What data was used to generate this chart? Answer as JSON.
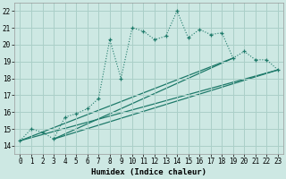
{
  "xlabel": "Humidex (Indice chaleur)",
  "bg_color": "#cde8e3",
  "grid_color": "#aacfc8",
  "line_color": "#1e7a6a",
  "xlim": [
    -0.5,
    23.5
  ],
  "ylim": [
    13.5,
    22.5
  ],
  "yticks": [
    14,
    15,
    16,
    17,
    18,
    19,
    20,
    21,
    22
  ],
  "xticks": [
    0,
    1,
    2,
    3,
    4,
    5,
    6,
    7,
    8,
    9,
    10,
    11,
    12,
    13,
    14,
    15,
    16,
    17,
    18,
    19,
    20,
    21,
    22,
    23
  ],
  "main_x": [
    0,
    1,
    2,
    3,
    4,
    5,
    6,
    7,
    8,
    9,
    10,
    11,
    12,
    13,
    14,
    15,
    16,
    17,
    18,
    19,
    20,
    21,
    22,
    23
  ],
  "main_y": [
    14.3,
    15.0,
    14.8,
    14.4,
    15.7,
    15.9,
    16.2,
    16.8,
    20.3,
    18.0,
    21.0,
    20.8,
    20.3,
    20.5,
    22.0,
    20.4,
    20.9,
    20.6,
    20.7,
    19.2,
    19.6,
    19.1,
    19.1,
    18.5
  ],
  "straight_lines": [
    {
      "x": [
        0,
        23
      ],
      "y": [
        14.3,
        18.5
      ]
    },
    {
      "x": [
        0,
        19
      ],
      "y": [
        14.3,
        19.2
      ]
    },
    {
      "x": [
        3,
        23
      ],
      "y": [
        14.4,
        18.5
      ]
    },
    {
      "x": [
        3,
        19
      ],
      "y": [
        14.4,
        19.2
      ]
    }
  ]
}
